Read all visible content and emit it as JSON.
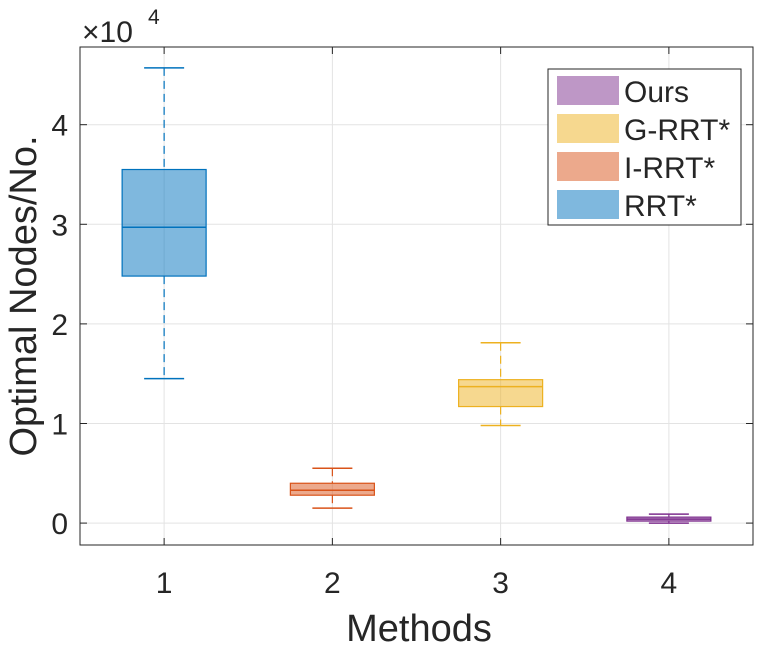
{
  "chart_data": {
    "type": "boxplot",
    "title": "",
    "xlabel": "Methods",
    "ylabel": "Optimal Nodes/No.",
    "y_multiplier_base": "×10",
    "y_multiplier_exponent": "4",
    "ylim": [
      -0.22,
      4.78
    ],
    "xlim": [
      0.5,
      4.5
    ],
    "yticks": [
      0,
      1,
      2,
      3,
      4
    ],
    "ytick_labels": [
      "0",
      "1",
      "2",
      "3",
      "4"
    ],
    "categories": [
      "1",
      "2",
      "3",
      "4"
    ],
    "grid": true,
    "legend_position": "top-right",
    "boxes": [
      {
        "name": "RRT*",
        "x": 1,
        "whisker_low": 1.45,
        "q1": 2.48,
        "median": 2.97,
        "q3": 3.55,
        "whisker_high": 4.57,
        "color": "#0072BD"
      },
      {
        "name": "I-RRT*",
        "x": 2,
        "whisker_low": 0.15,
        "q1": 0.28,
        "median": 0.33,
        "q3": 0.4,
        "whisker_high": 0.55,
        "color": "#D95319"
      },
      {
        "name": "G-RRT*",
        "x": 3,
        "whisker_low": 0.98,
        "q1": 1.17,
        "median": 1.37,
        "q3": 1.44,
        "whisker_high": 1.81,
        "color": "#EDB120"
      },
      {
        "name": "Ours",
        "x": 4,
        "whisker_low": 0.0,
        "q1": 0.02,
        "median": 0.04,
        "q3": 0.06,
        "whisker_high": 0.09,
        "color": "#7E2F8E"
      }
    ],
    "legend": [
      {
        "label": "Ours",
        "color": "#7E2F8E"
      },
      {
        "label": "G-RRT*",
        "color": "#EDB120"
      },
      {
        "label": "I-RRT*",
        "color": "#D95319"
      },
      {
        "label": "RRT*",
        "color": "#0072BD"
      }
    ]
  }
}
